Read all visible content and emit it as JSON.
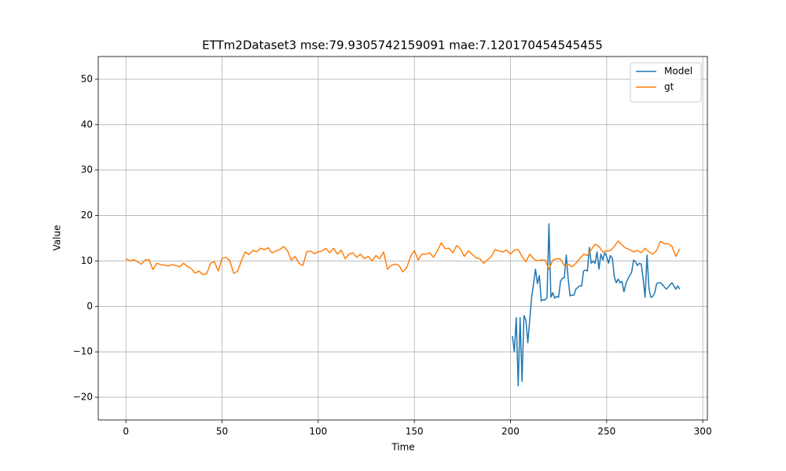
{
  "chart_data": {
    "type": "line",
    "title": "ETTm2Dataset3 mse:79.9305742159091 mae:7.120170454545455",
    "x_label": "Time",
    "y_label": "Value",
    "xlim": [
      -14.4,
      302.4
    ],
    "ylim": [
      -25,
      55
    ],
    "xticks": [
      0,
      50,
      100,
      150,
      200,
      250,
      300
    ],
    "yticks": [
      {
        "value": -20,
        "label": "−20"
      },
      {
        "value": -10,
        "label": "−10"
      },
      0,
      10,
      20,
      30,
      40,
      50
    ],
    "grid": true,
    "legend_position": "upper right",
    "series": [
      {
        "name": "Model",
        "color": "#1f77b4",
        "x": [
          201,
          202,
          203,
          204,
          205,
          206,
          207,
          208,
          209,
          210,
          211,
          212,
          213,
          214,
          215,
          216,
          217,
          218,
          219,
          220,
          221,
          222,
          223,
          224,
          225,
          226,
          227,
          228,
          229,
          230,
          231,
          232,
          233,
          234,
          235,
          236,
          237,
          238,
          239,
          240,
          241,
          242,
          243,
          244,
          245,
          246,
          247,
          248,
          249,
          250,
          251,
          252,
          253,
          254,
          255,
          256,
          257,
          258,
          259,
          260,
          261,
          262,
          263,
          264,
          265,
          266,
          267,
          268,
          269,
          270,
          271,
          272,
          273,
          274,
          275,
          276,
          277,
          278,
          279,
          280,
          281,
          282,
          283,
          284,
          285,
          286,
          287,
          288
        ],
        "values": [
          -6.5,
          -10,
          -2.5,
          -17.5,
          -2.5,
          -16.5,
          -2,
          -3,
          -8,
          -3,
          2,
          5,
          8.2,
          5,
          6.8,
          1.2,
          1.5,
          1.4,
          2,
          18.2,
          2,
          3,
          1.8,
          2.2,
          2,
          5.5,
          6.2,
          6.3,
          11.3,
          6,
          2.3,
          2.5,
          2.5,
          3.8,
          4.2,
          4.5,
          4.5,
          7.8,
          8,
          7.8,
          13,
          9.5,
          10,
          9.5,
          12,
          8.2,
          11.5,
          10.2,
          11.8,
          11,
          9.5,
          11.2,
          10.5,
          6.5,
          5.2,
          6,
          5.2,
          5.5,
          3.2,
          5,
          6,
          6.8,
          7.5,
          10.2,
          9.8,
          9,
          9.5,
          9.3,
          6,
          2,
          11.3,
          4,
          2,
          2.2,
          3,
          5,
          5.2,
          5.2,
          4.8,
          4.3,
          3.8,
          4.2,
          4.8,
          5.2,
          4.5,
          3.8,
          4.5,
          3.8
        ]
      },
      {
        "name": "gt",
        "color": "#ff7f0e",
        "x": [
          0,
          2,
          4,
          6,
          8,
          10,
          12,
          14,
          16,
          18,
          20,
          22,
          24,
          26,
          28,
          30,
          32,
          34,
          36,
          38,
          40,
          42,
          44,
          46,
          48,
          50,
          52,
          54,
          56,
          58,
          60,
          62,
          64,
          66,
          68,
          70,
          72,
          74,
          76,
          78,
          80,
          82,
          84,
          86,
          88,
          90,
          92,
          94,
          96,
          98,
          100,
          102,
          104,
          106,
          108,
          110,
          112,
          114,
          116,
          118,
          120,
          122,
          124,
          126,
          128,
          130,
          132,
          134,
          136,
          138,
          140,
          142,
          144,
          146,
          148,
          150,
          152,
          154,
          156,
          158,
          160,
          162,
          164,
          166,
          168,
          170,
          172,
          174,
          176,
          178,
          180,
          182,
          184,
          186,
          188,
          190,
          192,
          194,
          196,
          198,
          200,
          202,
          204,
          206,
          208,
          210,
          212,
          214,
          216,
          218,
          220,
          222,
          224,
          226,
          228,
          230,
          232,
          234,
          236,
          238,
          240,
          242,
          244,
          246,
          248,
          250,
          252,
          254,
          256,
          258,
          260,
          262,
          264,
          266,
          268,
          270,
          272,
          274,
          276,
          278,
          280,
          282,
          284,
          286,
          288
        ],
        "values": [
          10.5,
          10.0,
          10.3,
          9.8,
          9.3,
          10.2,
          10.3,
          8.1,
          9.5,
          9.2,
          9.1,
          8.9,
          9.2,
          9.0,
          8.7,
          9.5,
          8.8,
          8.3,
          7.3,
          7.8,
          7.0,
          7.2,
          9.5,
          9.8,
          7.8,
          10.6,
          10.8,
          10.1,
          7.3,
          7.7,
          10.0,
          12.0,
          11.4,
          12.3,
          12.0,
          12.8,
          12.5,
          12.9,
          11.8,
          12.2,
          12.5,
          13.2,
          12.3,
          10.2,
          11.0,
          9.5,
          9.0,
          12.0,
          12.2,
          11.6,
          12.0,
          12.2,
          12.8,
          11.8,
          12.8,
          11.5,
          12.4,
          10.5,
          11.5,
          11.8,
          10.8,
          11.5,
          10.5,
          11.0,
          10.0,
          11.2,
          10.5,
          12.0,
          8.2,
          9.0,
          9.3,
          9.0,
          7.6,
          8.5,
          11.0,
          12.3,
          10.2,
          11.5,
          11.5,
          11.8,
          10.8,
          12.3,
          14.0,
          12.7,
          12.8,
          11.8,
          13.4,
          12.6,
          11.0,
          12.2,
          11.5,
          10.7,
          10.5,
          9.5,
          10.2,
          11.0,
          12.5,
          12.2,
          12.0,
          12.4,
          11.5,
          12.4,
          12.5,
          11.0,
          9.8,
          11.5,
          10.5,
          10.0,
          10.2,
          10.2,
          8.2,
          10.2,
          10.5,
          10.4,
          9.0,
          9.3,
          8.7,
          9.5,
          10.5,
          11.5,
          11.2,
          12.5,
          13.7,
          13.2,
          12.0,
          12.2,
          12.3,
          13.2,
          14.4,
          13.5,
          12.8,
          12.5,
          12.0,
          12.3,
          11.8,
          12.8,
          12.0,
          11.5,
          12.3,
          14.3,
          13.8,
          13.8,
          13.2,
          11.0,
          12.7
        ]
      }
    ]
  }
}
